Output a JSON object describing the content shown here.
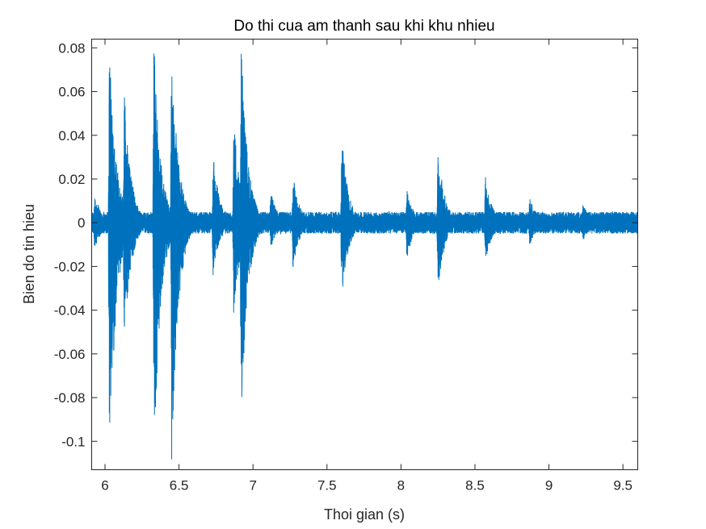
{
  "chart_data": {
    "type": "line",
    "title": "Do thi cua am thanh sau khi khu nhieu",
    "xlabel": "Thoi gian (s)",
    "ylabel": "Bien do tin hieu",
    "xlim": [
      5.91,
      9.6
    ],
    "ylim": [
      -0.113,
      0.084
    ],
    "xticks": [
      6,
      6.5,
      7,
      7.5,
      8,
      8.5,
      9,
      9.5
    ],
    "xtick_labels": [
      "6",
      "6.5",
      "7",
      "7.5",
      "8",
      "8.5",
      "9",
      "9.5"
    ],
    "yticks": [
      0.08,
      0.06,
      0.04,
      0.02,
      0,
      -0.02,
      -0.04,
      -0.06,
      -0.08,
      -0.1
    ],
    "ytick_labels": [
      "0.08",
      "0.06",
      "0.04",
      "0.02",
      "0",
      "-0.02",
      "-0.04",
      "-0.06",
      "-0.08",
      "-0.1"
    ],
    "grid": false,
    "legend": "none",
    "series": [
      {
        "color": "#0072BD",
        "noise_floor": 0.005,
        "bursts": [
          {
            "t": 5.93,
            "peak": 0.014,
            "trough": -0.014
          },
          {
            "t": 6.03,
            "peak": 0.084,
            "trough": -0.113
          },
          {
            "t": 6.13,
            "peak": 0.062,
            "trough": -0.058
          },
          {
            "t": 6.33,
            "peak": 0.084,
            "trough": -0.113
          },
          {
            "t": 6.45,
            "peak": 0.084,
            "trough": -0.113
          },
          {
            "t": 6.73,
            "peak": 0.032,
            "trough": -0.025
          },
          {
            "t": 6.87,
            "peak": 0.048,
            "trough": -0.045
          },
          {
            "t": 6.92,
            "peak": 0.083,
            "trough": -0.091
          },
          {
            "t": 7.12,
            "peak": 0.015,
            "trough": -0.012
          },
          {
            "t": 7.27,
            "peak": 0.022,
            "trough": -0.021
          },
          {
            "t": 7.6,
            "peak": 0.04,
            "trough": -0.036
          },
          {
            "t": 8.04,
            "peak": 0.016,
            "trough": -0.017
          },
          {
            "t": 8.25,
            "peak": 0.036,
            "trough": -0.031
          },
          {
            "t": 8.57,
            "peak": 0.022,
            "trough": -0.02
          },
          {
            "t": 8.87,
            "peak": 0.013,
            "trough": -0.011
          },
          {
            "t": 9.23,
            "peak": 0.009,
            "trough": -0.009
          }
        ]
      }
    ]
  }
}
